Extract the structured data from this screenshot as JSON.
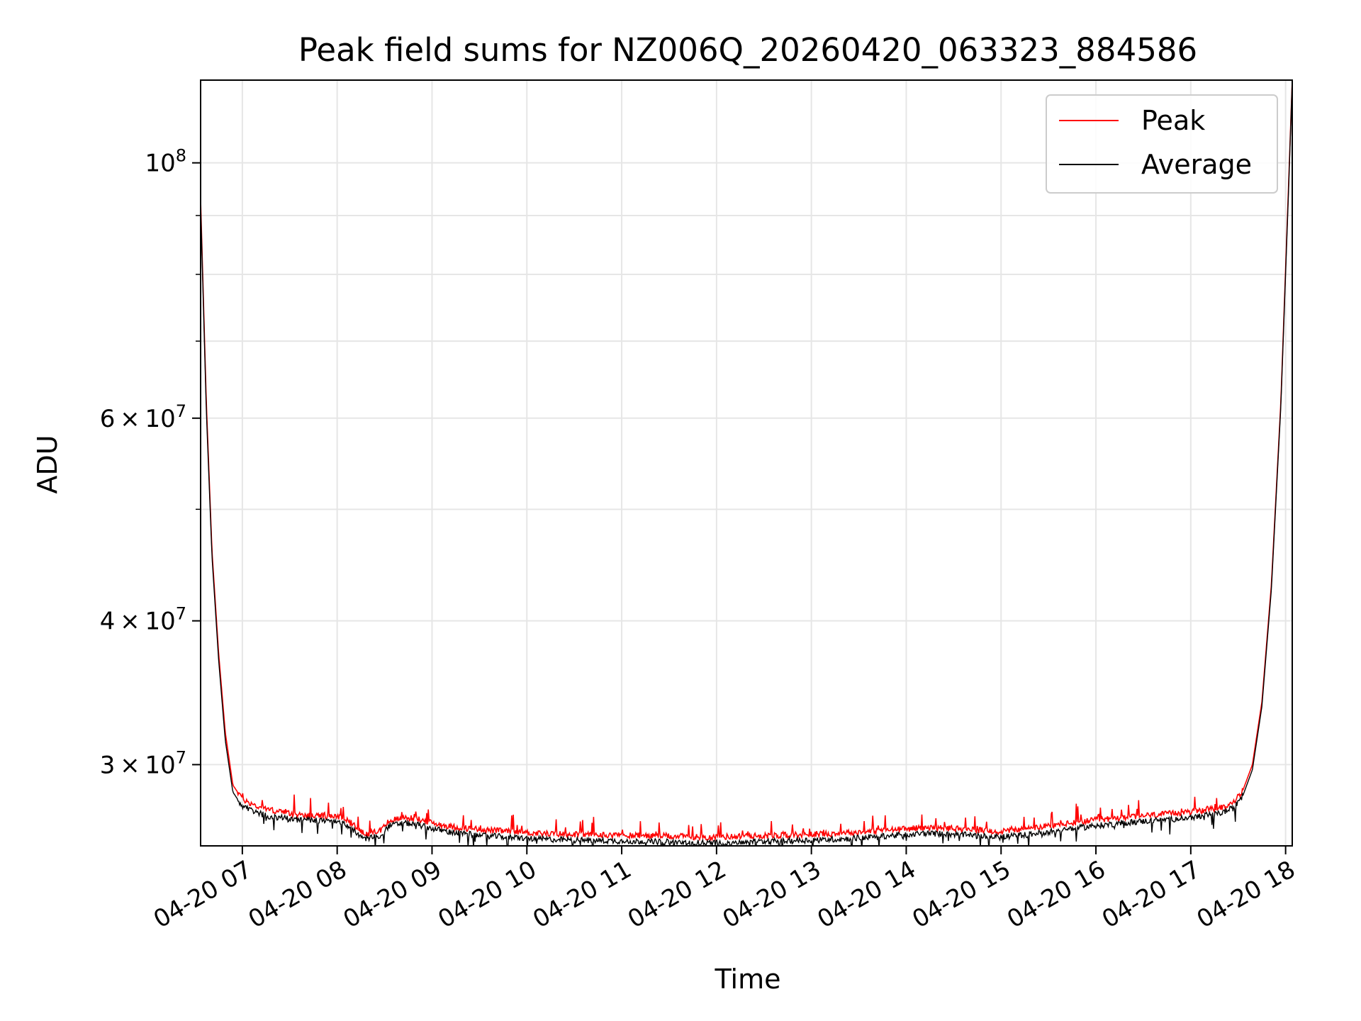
{
  "chart_data": {
    "type": "line",
    "title": "Peak field sums for NZ006Q_20260420_063323_884586",
    "xlabel": "Time",
    "ylabel": "ADU",
    "yscale": "log",
    "ylim": [
      25500000,
      118000000
    ],
    "xlim": [
      6.56,
      18.07
    ],
    "grid": true,
    "legend_position": "top-right",
    "x_ticks": [
      {
        "value": 7,
        "label": "04-20 07"
      },
      {
        "value": 8,
        "label": "04-20 08"
      },
      {
        "value": 9,
        "label": "04-20 09"
      },
      {
        "value": 10,
        "label": "04-20 10"
      },
      {
        "value": 11,
        "label": "04-20 11"
      },
      {
        "value": 12,
        "label": "04-20 12"
      },
      {
        "value": 13,
        "label": "04-20 13"
      },
      {
        "value": 14,
        "label": "04-20 14"
      },
      {
        "value": 15,
        "label": "04-20 15"
      },
      {
        "value": 16,
        "label": "04-20 16"
      },
      {
        "value": 17,
        "label": "04-20 17"
      },
      {
        "value": 18,
        "label": "04-20 18"
      }
    ],
    "y_major_ticks": [
      {
        "value": 100000000,
        "base": "10",
        "exp": "8",
        "coef": ""
      },
      {
        "value": 60000000,
        "base": "10",
        "exp": "7",
        "coef": "6"
      },
      {
        "value": 40000000,
        "base": "10",
        "exp": "7",
        "coef": "4"
      },
      {
        "value": 30000000,
        "base": "10",
        "exp": "7",
        "coef": "3"
      }
    ],
    "times_sign": "×",
    "y_minor_grid": [
      90000000,
      80000000,
      70000000,
      50000000
    ],
    "series": [
      {
        "name": "Peak",
        "color": "#ff0000",
        "x": [
          6.56,
          6.62,
          6.68,
          6.75,
          6.82,
          6.9,
          7.0,
          7.15,
          7.3,
          7.5,
          7.7,
          7.9,
          8.05,
          8.2,
          8.3,
          8.45,
          8.55,
          8.7,
          8.85,
          9.0,
          9.2,
          9.5,
          9.8,
          10.1,
          10.5,
          11.0,
          11.5,
          11.9,
          12.3,
          12.7,
          13.0,
          13.3,
          13.6,
          13.9,
          14.2,
          14.5,
          14.8,
          15.0,
          15.3,
          15.6,
          16.0,
          16.4,
          16.8,
          17.1,
          17.3,
          17.45,
          17.55,
          17.65,
          17.75,
          17.85,
          17.95,
          18.03,
          18.07
        ],
        "y": [
          93000000,
          62000000,
          46000000,
          37500000,
          32000000,
          28800000,
          28000000,
          27600000,
          27400000,
          27200000,
          27100000,
          27050000,
          27000000,
          26500000,
          26100000,
          26300000,
          26800000,
          27000000,
          26900000,
          26700000,
          26500000,
          26350000,
          26250000,
          26150000,
          26100000,
          26050000,
          26000000,
          25950000,
          26000000,
          26050000,
          26100000,
          26150000,
          26250000,
          26350000,
          26450000,
          26400000,
          26300000,
          26250000,
          26400000,
          26600000,
          26850000,
          27050000,
          27200000,
          27350000,
          27500000,
          27800000,
          28500000,
          30000000,
          34000000,
          43000000,
          62000000,
          95000000,
          118000000
        ]
      },
      {
        "name": "Average",
        "color": "#000000",
        "x": [
          6.56,
          6.62,
          6.68,
          6.75,
          6.82,
          6.9,
          7.0,
          7.15,
          7.3,
          7.5,
          7.7,
          7.9,
          8.05,
          8.2,
          8.3,
          8.45,
          8.55,
          8.7,
          8.85,
          9.0,
          9.2,
          9.5,
          9.8,
          10.1,
          10.5,
          11.0,
          11.5,
          11.9,
          12.3,
          12.7,
          13.0,
          13.3,
          13.6,
          13.9,
          14.2,
          14.5,
          14.8,
          15.0,
          15.3,
          15.6,
          16.0,
          16.4,
          16.8,
          17.1,
          17.3,
          17.45,
          17.55,
          17.65,
          17.75,
          17.85,
          17.95,
          18.03,
          18.07
        ],
        "y": [
          92000000,
          61000000,
          45500000,
          37000000,
          31500000,
          28400000,
          27600000,
          27250000,
          27050000,
          26900000,
          26850000,
          26800000,
          26750000,
          26200000,
          25850000,
          26050000,
          26550000,
          26700000,
          26600000,
          26400000,
          26200000,
          26050000,
          25950000,
          25850000,
          25800000,
          25750000,
          25700000,
          25650000,
          25700000,
          25750000,
          25800000,
          25850000,
          25950000,
          26050000,
          26150000,
          26100000,
          26000000,
          25950000,
          26100000,
          26300000,
          26550000,
          26750000,
          26900000,
          27050000,
          27200000,
          27500000,
          28200000,
          29700000,
          33700000,
          42600000,
          61500000,
          94000000,
          118000000
        ]
      }
    ]
  }
}
